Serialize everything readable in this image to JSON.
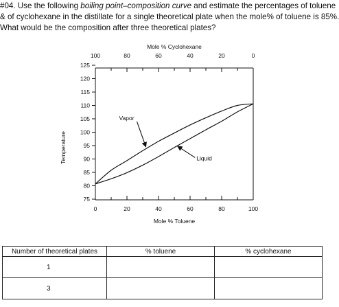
{
  "question": {
    "line1_pre": "#04. Use the following ",
    "line1_em": "boiling point–composition curve",
    "line1_post": " and estimate the percentages of toluene",
    "line2": "& of cyclohexane in the distillate for a single theoretical plate when the mole% of toluene is 85%.",
    "line3": "What would be the composition after three theoretical plates?"
  },
  "chart_data": {
    "type": "line",
    "top_axis_label": "Mole % Cyclohexane",
    "top_ticks": [
      "100",
      "80",
      "60",
      "40",
      "20",
      "0"
    ],
    "top_tick_values": [
      100,
      80,
      60,
      40,
      20,
      0
    ],
    "xlabel": "Mole % Toluene",
    "x_ticks": [
      "0",
      "20",
      "40",
      "60",
      "80",
      "100"
    ],
    "x_tick_values": [
      0,
      20,
      40,
      60,
      80,
      100
    ],
    "xlim": [
      0,
      100
    ],
    "ylabel": "Temperature",
    "y_ticks": [
      "75",
      "80",
      "85",
      "90",
      "95",
      "100",
      "105",
      "110",
      "115",
      "120",
      "125"
    ],
    "y_tick_values": [
      75,
      80,
      85,
      90,
      95,
      100,
      105,
      110,
      115,
      120,
      125
    ],
    "ylim": [
      75,
      125
    ],
    "grid": false,
    "series": [
      {
        "name": "Vapor",
        "x": [
          0,
          10,
          20,
          30,
          40,
          50,
          60,
          70,
          80,
          90,
          100
        ],
        "y": [
          80.7,
          85.8,
          89.4,
          93.1,
          96.6,
          99.7,
          102.7,
          105.4,
          107.9,
          110.0,
          110.6
        ]
      },
      {
        "name": "Liquid",
        "x": [
          0,
          10,
          20,
          30,
          40,
          50,
          60,
          70,
          80,
          90,
          100
        ],
        "y": [
          80.7,
          82.6,
          84.9,
          87.7,
          90.9,
          94.3,
          97.6,
          100.9,
          104.1,
          107.6,
          110.6
        ]
      }
    ],
    "annotations": [
      {
        "text": "Vapor",
        "target_series": "Vapor",
        "x": 32,
        "y": 94.5,
        "text_x": 15,
        "text_y": 104.5
      },
      {
        "text": "Liquid",
        "target_series": "Liquid",
        "x": 52,
        "y": 94.8,
        "text_x": 64,
        "text_y": 89.5
      }
    ]
  },
  "table": {
    "headers": [
      "Number of theoretical plates",
      "% toluene",
      "% cyclohexane"
    ],
    "rows": [
      [
        "1",
        "",
        ""
      ],
      [
        "3",
        "",
        ""
      ]
    ]
  }
}
